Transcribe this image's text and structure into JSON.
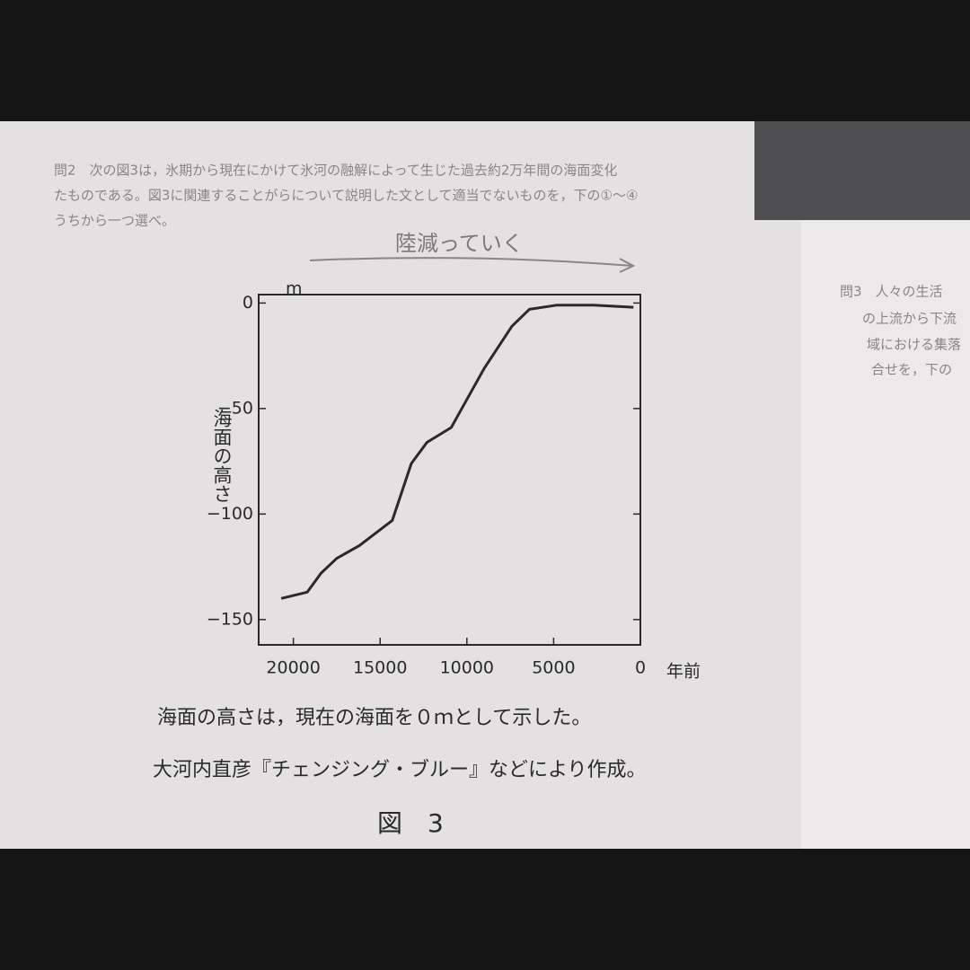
{
  "question": {
    "lines": [
      "問2　次の図3は，氷期から現在にかけて氷河の融解によって生じた過去約2万年間の海面変化",
      "たものである。図3に関連することがらについて説明した文として適当でないものを，下の①～④",
      "うちから一つ選べ。"
    ]
  },
  "handwritten_note": "陸減っていく",
  "right_page": {
    "lines": [
      "問3　人々の生活",
      "の上流から下流",
      "域における集落",
      "合せを，下の"
    ]
  },
  "chart_data": {
    "type": "line",
    "y_label": "海面の高さ",
    "y_unit": "m",
    "x_unit": "年前",
    "x": [
      20700,
      19200,
      18400,
      17500,
      16200,
      14300,
      13200,
      12300,
      10900,
      9000,
      7400,
      6400,
      4800,
      2700,
      400
    ],
    "values": [
      -140,
      -137,
      -128,
      -121,
      -115,
      -103,
      -76,
      -66,
      -59,
      -31,
      -11,
      -3,
      -1,
      -1,
      -2
    ],
    "color": "#2a2a2a",
    "xlim": [
      22000,
      0
    ],
    "ylim": [
      -162,
      4
    ],
    "xticks": [
      20000,
      15000,
      10000,
      5000,
      0
    ],
    "yticks": [
      0,
      {
        "value": -50,
        "label": "−50"
      },
      {
        "value": -100,
        "label": "−100"
      },
      {
        "value": -150,
        "label": "−150"
      }
    ],
    "notes": [
      "海面の高さは，現在の海面を０ｍとして示した。",
      "大河内直彦『チェンジング・ブルー』などにより作成。"
    ],
    "figure_label": "図　3"
  }
}
